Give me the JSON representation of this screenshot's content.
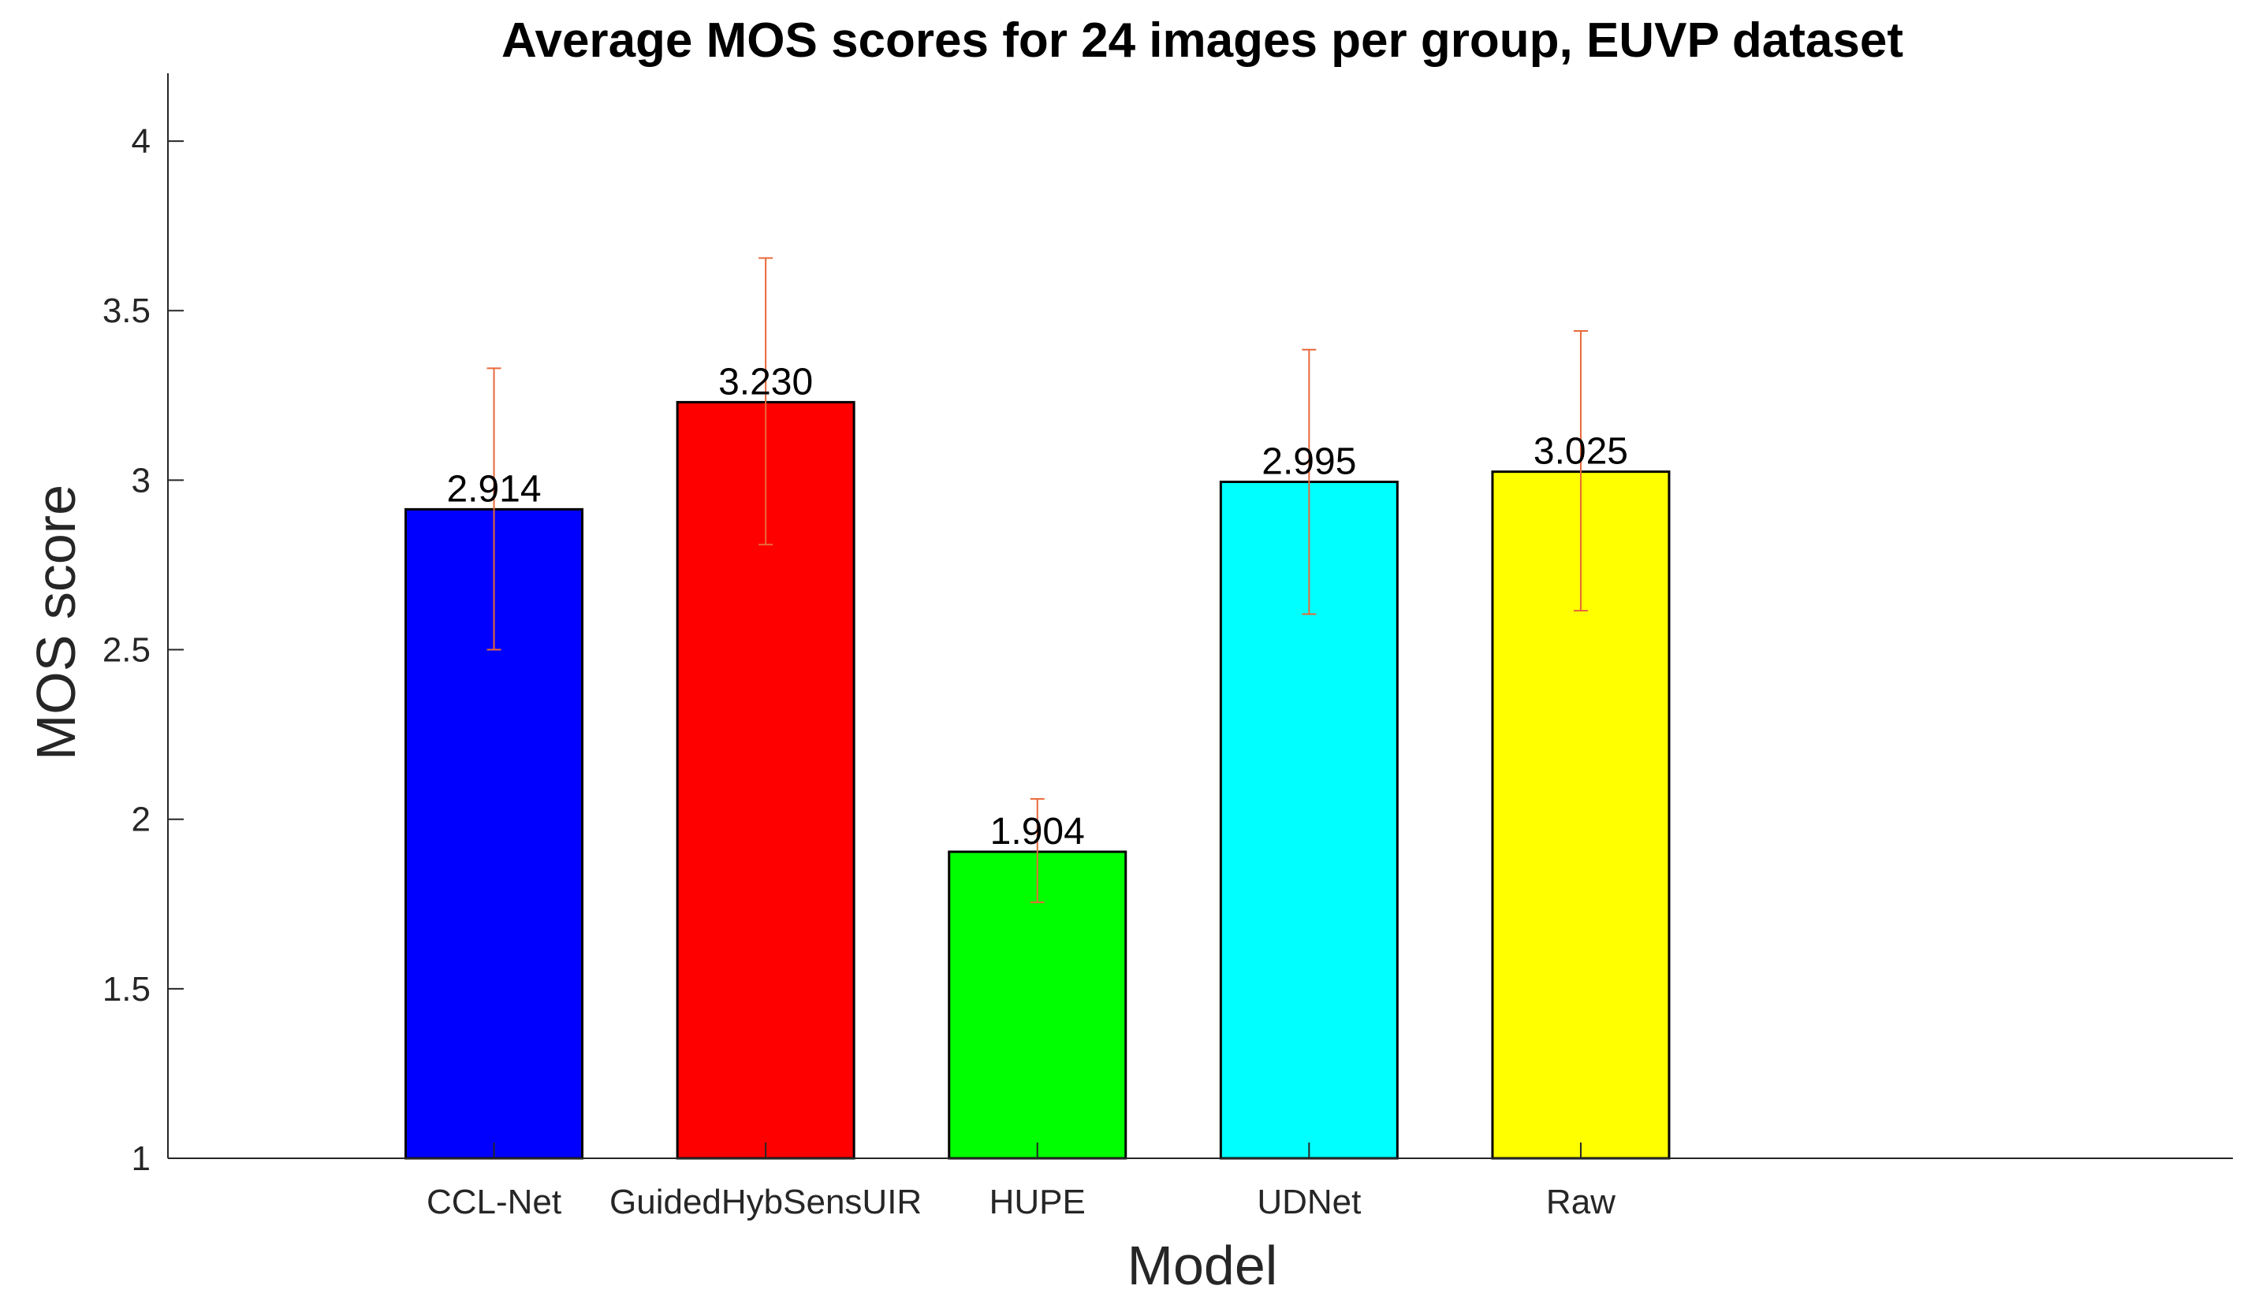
{
  "chart_data": {
    "type": "bar",
    "title": "Average MOS scores for 24 images per group, EUVP dataset",
    "xlabel": "Model",
    "ylabel": "MOS score",
    "categories": [
      "CCL-Net",
      "GuidedHybSensUIR",
      "HUPE",
      "UDNet",
      "Raw"
    ],
    "values": [
      2.914,
      3.23,
      1.904,
      2.995,
      3.025
    ],
    "value_labels": [
      "2.914",
      "3.230",
      "1.904",
      "2.995",
      "3.025"
    ],
    "error_low": [
      2.5,
      2.81,
      1.755,
      2.605,
      2.615
    ],
    "error_high": [
      3.33,
      3.655,
      2.06,
      3.385,
      3.44
    ],
    "bar_colors": [
      "#0000ff",
      "#ff0000",
      "#00ff00",
      "#00ffff",
      "#ffff00"
    ],
    "error_color": "#e8683a",
    "ylim": [
      1,
      4.2
    ],
    "xlim": [
      -0.2,
      7.4
    ],
    "yticks": [
      1,
      1.5,
      2,
      2.5,
      3,
      3.5,
      4
    ],
    "ytick_labels": [
      "1",
      "1.5",
      "2",
      "2.5",
      "3",
      "3.5",
      "4"
    ],
    "grid": false,
    "legend": "none"
  }
}
